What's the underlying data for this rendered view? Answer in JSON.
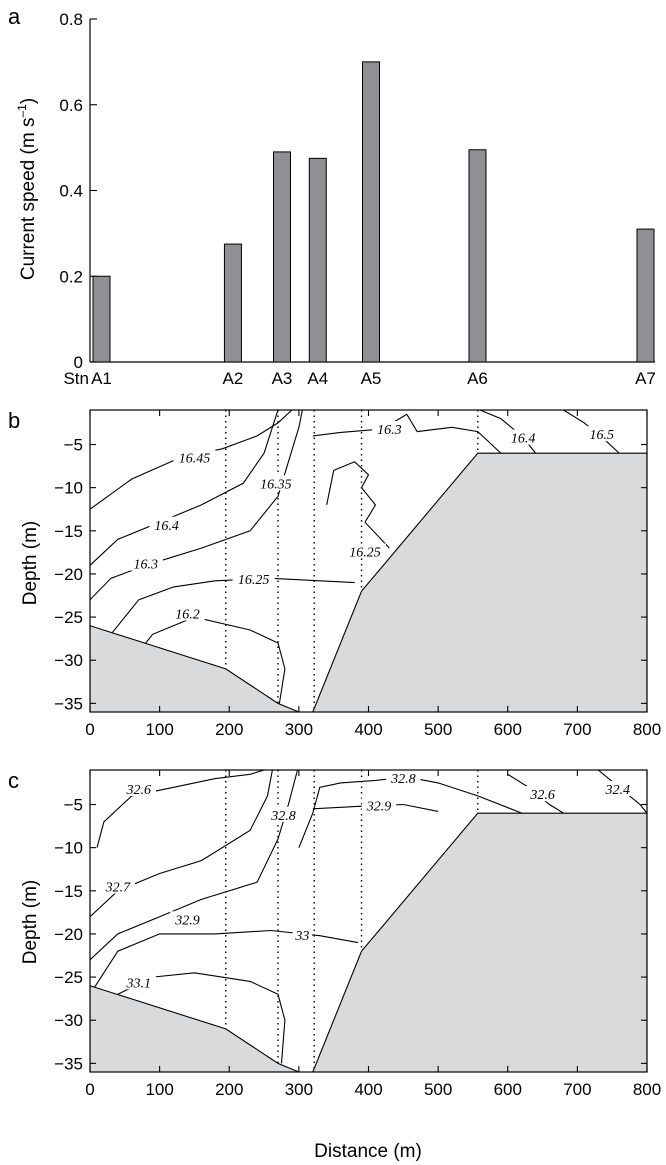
{
  "chart_data": [
    {
      "panel": "a",
      "type": "bar",
      "ylabel": "Current  speed (m s",
      "ylabel_sup": "–1",
      "ylabel_close": ")",
      "ylim": [
        0,
        0.8
      ],
      "yticks": [
        0,
        0.2,
        0.4,
        0.6,
        0.8
      ],
      "ytick_labels": [
        "0",
        "0.2",
        "0.4",
        "0.6",
        "0.8"
      ],
      "station_prefix": "Stn",
      "categories": [
        "A1",
        "A2",
        "A3",
        "A4",
        "A5",
        "A6",
        "A7"
      ],
      "x_positions": [
        0,
        158,
        217,
        260,
        324,
        452,
        654
      ],
      "values": [
        0.2,
        0.275,
        0.49,
        0.475,
        0.7,
        0.495,
        0.31
      ],
      "bar_color": "#8f8f94"
    },
    {
      "panel": "b",
      "type": "contour",
      "ylabel": "Depth (m)",
      "xlabel": "",
      "xlim": [
        0,
        800
      ],
      "ylim": [
        -36,
        -1
      ],
      "xticks": [
        0,
        100,
        200,
        300,
        400,
        500,
        600,
        700,
        800
      ],
      "xtick_labels": [
        "0",
        "100",
        "200",
        "300",
        "400",
        "500",
        "600",
        "700",
        "800"
      ],
      "yticks": [
        -5,
        -10,
        -15,
        -20,
        -25,
        -30,
        -35
      ],
      "ytick_labels": [
        "−5",
        "−10",
        "−15",
        "−20",
        "−25",
        "−30",
        "−35"
      ],
      "station_lines_x": [
        195,
        270,
        322,
        390,
        557
      ],
      "seabed_color": "#d9dadc",
      "seabed_left": [
        [
          0,
          -26
        ],
        [
          195,
          -31
        ],
        [
          270,
          -35
        ],
        [
          300,
          -36
        ]
      ],
      "seabed_right": [
        [
          320,
          -36
        ],
        [
          390,
          -22
        ],
        [
          557,
          -6
        ],
        [
          800,
          -6
        ]
      ],
      "contours": [
        {
          "level": "16.45",
          "points": [
            [
              0,
              -12.5
            ],
            [
              60,
              -9
            ],
            [
              130,
              -6.5
            ],
            [
              190,
              -5.5
            ],
            [
              240,
              -4
            ],
            [
              270,
              -2.5
            ],
            [
              290,
              -1
            ]
          ]
        },
        {
          "level": "16.4",
          "points": [
            [
              0,
              -19
            ],
            [
              40,
              -16
            ],
            [
              100,
              -14
            ],
            [
              160,
              -12
            ],
            [
              220,
              -9.5
            ],
            [
              250,
              -6
            ],
            [
              262,
              -3
            ],
            [
              270,
              -1
            ]
          ]
        },
        {
          "level": "16.35",
          "points": [
            [
              0,
              -23
            ],
            [
              30,
              -20.5
            ],
            [
              80,
              -19
            ],
            [
              160,
              -17
            ],
            [
              230,
              -15
            ],
            [
              270,
              -11
            ],
            [
              285,
              -7
            ],
            [
              300,
              -3
            ],
            [
              305,
              -1
            ]
          ]
        },
        {
          "level": "16.3",
          "points": [
            [
              320,
              -4
            ],
            [
              360,
              -3.6
            ],
            [
              420,
              -3.2
            ],
            [
              455,
              -1.5
            ],
            [
              470,
              -3.5
            ],
            [
              520,
              -3
            ],
            [
              557,
              -3.5
            ],
            [
              590,
              -6
            ]
          ]
        },
        {
          "level": "16.25",
          "points": [
            [
              0,
              -30
            ],
            [
              30,
              -27
            ],
            [
              70,
              -23
            ],
            [
              120,
              -21.5
            ],
            [
              180,
              -20.8
            ],
            [
              260,
              -20.5
            ],
            [
              330,
              -20.8
            ],
            [
              380,
              -21
            ]
          ]
        },
        {
          "level": "16.2",
          "points": [
            [
              60,
              -30
            ],
            [
              90,
              -27
            ],
            [
              150,
              -25
            ],
            [
              230,
              -26.5
            ],
            [
              270,
              -28
            ],
            [
              280,
              -31
            ],
            [
              272,
              -35
            ]
          ]
        },
        {
          "level": "16.25",
          "points": [
            [
              340,
              -12
            ],
            [
              350,
              -8
            ],
            [
              380,
              -7
            ],
            [
              400,
              -8.5
            ],
            [
              390,
              -10
            ],
            [
              410,
              -12
            ],
            [
              395,
              -14
            ],
            [
              430,
              -17
            ]
          ]
        },
        {
          "level": "16.4",
          "points": [
            [
              560,
              -1
            ],
            [
              590,
              -2
            ],
            [
              620,
              -4
            ],
            [
              640,
              -6
            ]
          ]
        },
        {
          "level": "16.5",
          "points": [
            [
              680,
              -1
            ],
            [
              710,
              -2.5
            ],
            [
              740,
              -4.5
            ],
            [
              760,
              -6
            ]
          ]
        }
      ],
      "contour_labels": [
        {
          "text": "16.45",
          "x": 150,
          "y": -6.5
        },
        {
          "text": "16.4",
          "x": 110,
          "y": -14.3
        },
        {
          "text": "16.3",
          "x": 80,
          "y": -18.8
        },
        {
          "text": "16.35",
          "x": 267,
          "y": -9.5
        },
        {
          "text": "16.3",
          "x": 430,
          "y": -3.2
        },
        {
          "text": "16.25",
          "x": 235,
          "y": -20.6
        },
        {
          "text": "16.2",
          "x": 140,
          "y": -24.6
        },
        {
          "text": "16.25",
          "x": 395,
          "y": -17.4
        },
        {
          "text": "16.4",
          "x": 622,
          "y": -4.2
        },
        {
          "text": "16.5",
          "x": 735,
          "y": -3.8
        }
      ]
    },
    {
      "panel": "c",
      "type": "contour",
      "ylabel": "Depth (m)",
      "xlabel": "Distance (m)",
      "xlim": [
        0,
        800
      ],
      "ylim": [
        -36,
        -1
      ],
      "xticks": [
        0,
        100,
        200,
        300,
        400,
        500,
        600,
        700,
        800
      ],
      "xtick_labels": [
        "0",
        "100",
        "200",
        "300",
        "400",
        "500",
        "600",
        "700",
        "800"
      ],
      "yticks": [
        -5,
        -10,
        -15,
        -20,
        -25,
        -30,
        -35
      ],
      "ytick_labels": [
        "−5",
        "−10",
        "−15",
        "−20",
        "−25",
        "−30",
        "−35"
      ],
      "station_lines_x": [
        195,
        270,
        322,
        390,
        557
      ],
      "seabed_color": "#d9dadc",
      "seabed_left": [
        [
          0,
          -26
        ],
        [
          195,
          -31
        ],
        [
          270,
          -35
        ],
        [
          300,
          -36
        ]
      ],
      "seabed_right": [
        [
          320,
          -36
        ],
        [
          390,
          -22
        ],
        [
          557,
          -6
        ],
        [
          800,
          -6
        ]
      ],
      "contours": [
        {
          "level": "32.6",
          "points": [
            [
              10,
              -10
            ],
            [
              20,
              -7
            ],
            [
              60,
              -4
            ],
            [
              120,
              -3
            ],
            [
              180,
              -2
            ],
            [
              230,
              -1.5
            ],
            [
              250,
              -1
            ]
          ]
        },
        {
          "level": "32.7",
          "points": [
            [
              0,
              -18
            ],
            [
              40,
              -15
            ],
            [
              100,
              -13
            ],
            [
              160,
              -11.5
            ],
            [
              230,
              -8
            ],
            [
              255,
              -4
            ],
            [
              262,
              -1
            ]
          ]
        },
        {
          "level": "32.8",
          "points": [
            [
              0,
              -23
            ],
            [
              40,
              -20
            ],
            [
              100,
              -18
            ],
            [
              160,
              -16
            ],
            [
              240,
              -14
            ],
            [
              270,
              -9
            ],
            [
              285,
              -5
            ],
            [
              298,
              -1
            ]
          ]
        },
        {
          "level": "32.8",
          "points": [
            [
              300,
              -10
            ],
            [
              320,
              -6
            ],
            [
              330,
              -3
            ],
            [
              360,
              -2.5
            ],
            [
              410,
              -2.2
            ],
            [
              455,
              -1.8
            ],
            [
              500,
              -2.5
            ],
            [
              557,
              -4
            ],
            [
              620,
              -6
            ]
          ]
        },
        {
          "level": "32.9",
          "points": [
            [
              0,
              -27
            ],
            [
              40,
              -22
            ],
            [
              100,
              -20
            ],
            [
              180,
              -20
            ],
            [
              260,
              -19.6
            ],
            [
              330,
              -20.2
            ],
            [
              385,
              -21
            ]
          ]
        },
        {
          "level": "33",
          "points": [
            [
              320,
              -5.5
            ],
            [
              390,
              -5.2
            ],
            [
              450,
              -5
            ],
            [
              500,
              -5.8
            ]
          ]
        },
        {
          "level": "33.1",
          "points": [
            [
              40,
              -27
            ],
            [
              90,
              -25
            ],
            [
              150,
              -24.5
            ],
            [
              230,
              -25.5
            ],
            [
              270,
              -27
            ],
            [
              280,
              -30
            ],
            [
              275,
              -35
            ]
          ]
        },
        {
          "level": "32.6",
          "points": [
            [
              600,
              -1.5
            ],
            [
              630,
              -3
            ],
            [
              660,
              -5
            ],
            [
              680,
              -6
            ]
          ]
        },
        {
          "level": "32.4",
          "points": [
            [
              730,
              -1
            ],
            [
              760,
              -3
            ],
            [
              790,
              -5
            ],
            [
              800,
              -6
            ]
          ]
        }
      ],
      "contour_labels": [
        {
          "text": "32.6",
          "x": 70,
          "y": -3.2
        },
        {
          "text": "32.7",
          "x": 40,
          "y": -14.5
        },
        {
          "text": "32.9",
          "x": 140,
          "y": -18.3
        },
        {
          "text": "32.8",
          "x": 278,
          "y": -6.2
        },
        {
          "text": "32.8",
          "x": 450,
          "y": -1.9
        },
        {
          "text": "32.9",
          "x": 415,
          "y": -5.1
        },
        {
          "text": "33",
          "x": 305,
          "y": -20.1
        },
        {
          "text": "33.1",
          "x": 70,
          "y": -25.6
        },
        {
          "text": "32.6",
          "x": 650,
          "y": -3.8
        },
        {
          "text": "32.4",
          "x": 758,
          "y": -3.2
        }
      ]
    }
  ],
  "panel_letters": [
    "a",
    "b",
    "c"
  ]
}
